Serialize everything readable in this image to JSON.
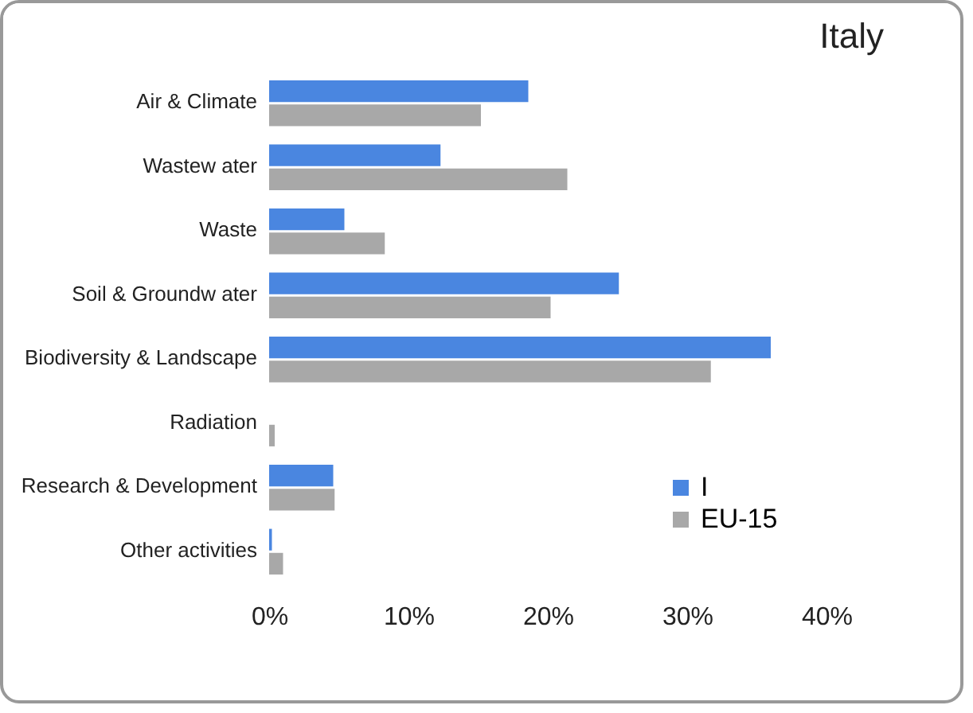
{
  "chart_data": {
    "type": "bar",
    "orientation": "horizontal",
    "title": "Italy",
    "categories": [
      "Air & Climate",
      "Wastew ater",
      "Waste",
      "Soil & Groundw ater",
      "Biodiversity & Landscape",
      "Radiation",
      "Research & Development",
      "Other activities"
    ],
    "series": [
      {
        "name": "I",
        "color": "#4a86e0",
        "values": [
          18.6,
          12.3,
          5.4,
          25.1,
          36.0,
          null,
          4.6,
          0.2
        ]
      },
      {
        "name": "EU-15",
        "color": "#a8a8a8",
        "values": [
          15.2,
          21.4,
          8.3,
          20.2,
          31.7,
          0.4,
          4.7,
          1.0
        ]
      }
    ],
    "xlim": [
      0,
      40
    ],
    "xticks": [
      {
        "value": 0,
        "label": "0%"
      },
      {
        "value": 10,
        "label": "10%"
      },
      {
        "value": 20,
        "label": "20%"
      },
      {
        "value": 30,
        "label": "30%"
      },
      {
        "value": 40,
        "label": "40%"
      }
    ],
    "grid": false,
    "legend": "bottom right"
  }
}
